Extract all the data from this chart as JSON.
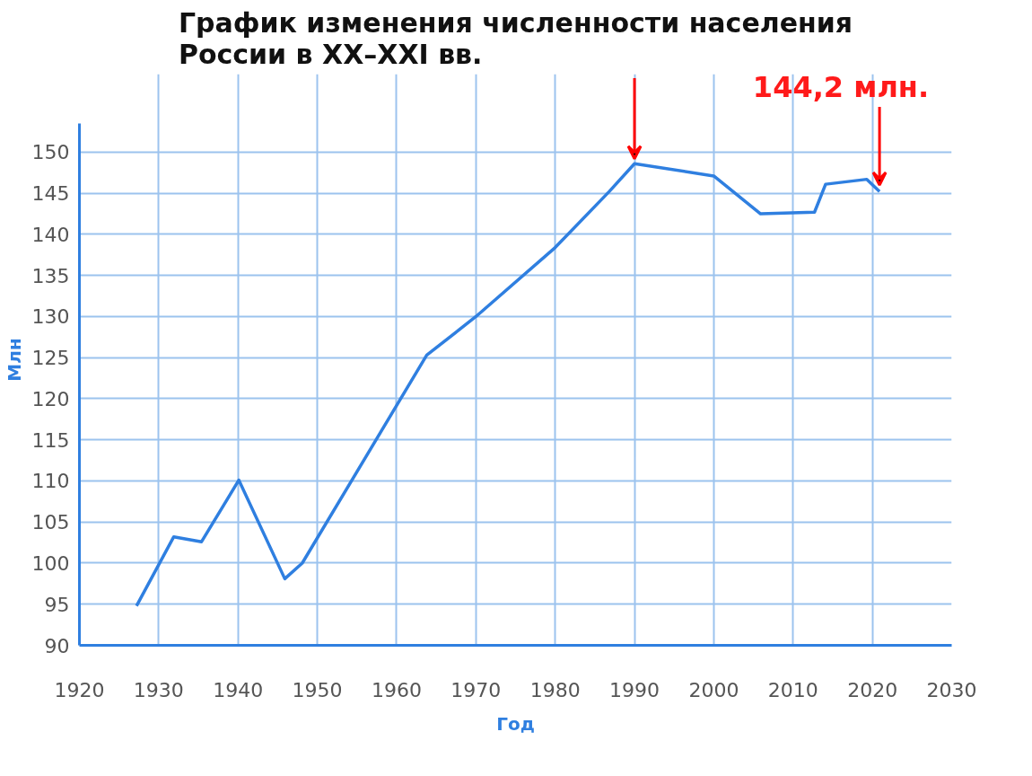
{
  "chart_data": {
    "type": "line",
    "title": "График изменения численности населения\nРоссии в XX–XXI вв.",
    "xlabel": "Год",
    "ylabel": "Млн",
    "x": [
      1927.2,
      1931.9,
      1935.4,
      1940.1,
      1945.9,
      1948.1,
      1963.8,
      1970,
      1980,
      1986.8,
      1990,
      2000,
      2005.9,
      2012.7,
      2014.1,
      2019.3,
      2020.9
    ],
    "series": [
      {
        "color": "#2f7fe0",
        "values": [
          94.8,
          103.2,
          102.6,
          110.1,
          98.1,
          100.0,
          125.3,
          130.0,
          138.4,
          145.2,
          148.6,
          147.1,
          142.5,
          142.7,
          146.1,
          146.7,
          145.2
        ]
      }
    ],
    "annotations": [
      {
        "text": "144,2 млн.",
        "x": 2020.9,
        "y": 145.2
      }
    ],
    "xlim": [
      1920,
      2030
    ],
    "ylim": [
      90,
      153.5
    ],
    "xticks": [
      1920,
      1930,
      1940,
      1950,
      1960,
      1970,
      1980,
      1990,
      2000,
      2010,
      2020,
      2030
    ],
    "yticks": [
      90,
      95,
      100,
      105,
      110,
      115,
      120,
      125,
      130,
      135,
      140,
      145,
      150
    ],
    "grid": true,
    "marker": "none",
    "line_style": "solid"
  }
}
